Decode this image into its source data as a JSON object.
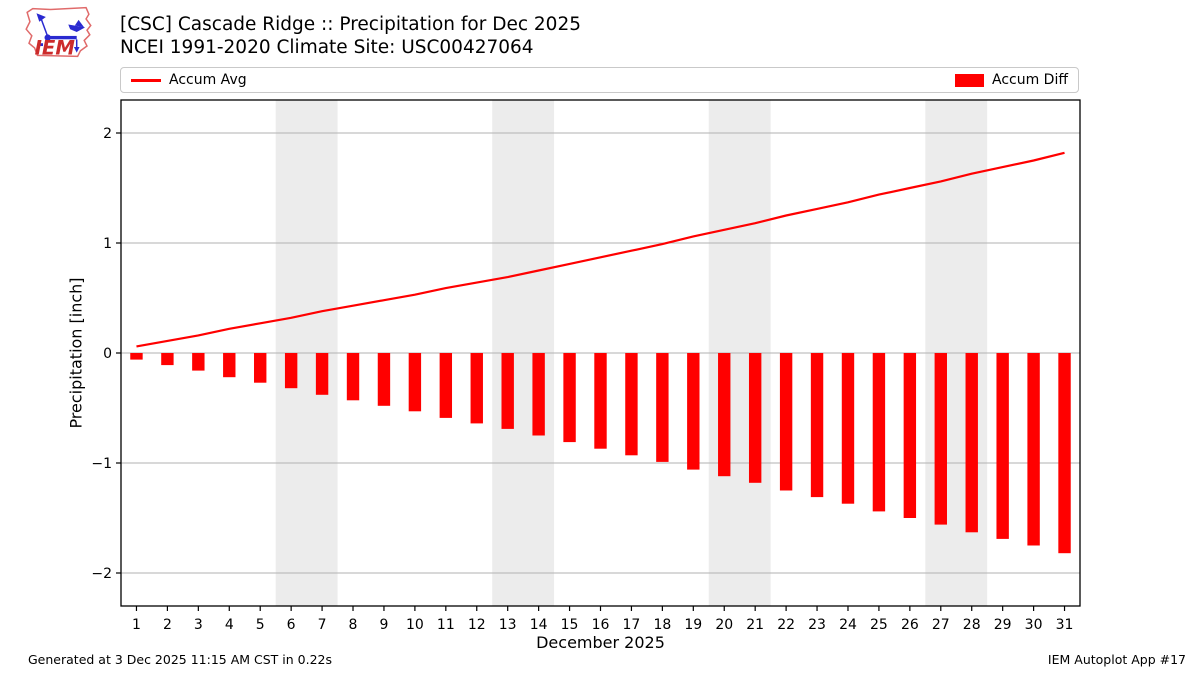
{
  "header": {
    "title_line1": "[CSC] Cascade Ridge :: Precipitation for Dec 2025",
    "title_line2": "NCEI 1991-2020 Climate Site: USC00427064",
    "logo_text": "IEM"
  },
  "footer": {
    "left": "Generated at 3 Dec 2025 11:15 AM CST in 0.22s",
    "right": "IEM Autoplot App #17"
  },
  "colors": {
    "series_red": "#ff0000",
    "grid": "#b2b2b2",
    "weekend_band": "#ececec",
    "spine": "#000000",
    "logo_outline": "#e06a6a",
    "logo_text": "#cc2b2b",
    "logo_vane": "#2a2ad0"
  },
  "chart_data": {
    "type": "bar",
    "title": "[CSC] Cascade Ridge :: Precipitation for Dec 2025",
    "subtitle": "NCEI 1991-2020 Climate Site: USC00427064",
    "xlabel": "December 2025",
    "ylabel": "Precipitation [inch]",
    "x": [
      1,
      2,
      3,
      4,
      5,
      6,
      7,
      8,
      9,
      10,
      11,
      12,
      13,
      14,
      15,
      16,
      17,
      18,
      19,
      20,
      21,
      22,
      23,
      24,
      25,
      26,
      27,
      28,
      29,
      30,
      31
    ],
    "series": [
      {
        "name": "Accum Avg",
        "kind": "line",
        "color": "#ff0000",
        "values": [
          0.06,
          0.11,
          0.16,
          0.22,
          0.27,
          0.32,
          0.38,
          0.43,
          0.48,
          0.53,
          0.59,
          0.64,
          0.69,
          0.75,
          0.81,
          0.87,
          0.93,
          0.99,
          1.06,
          1.12,
          1.18,
          1.25,
          1.31,
          1.37,
          1.44,
          1.5,
          1.56,
          1.63,
          1.69,
          1.75,
          1.82
        ]
      },
      {
        "name": "Accum Diff",
        "kind": "bar",
        "color": "#ff0000",
        "values": [
          -0.06,
          -0.11,
          -0.16,
          -0.22,
          -0.27,
          -0.32,
          -0.38,
          -0.43,
          -0.48,
          -0.53,
          -0.59,
          -0.64,
          -0.69,
          -0.75,
          -0.81,
          -0.87,
          -0.93,
          -0.99,
          -1.06,
          -1.12,
          -1.18,
          -1.25,
          -1.31,
          -1.37,
          -1.44,
          -1.5,
          -1.56,
          -1.63,
          -1.69,
          -1.75,
          -1.82
        ]
      }
    ],
    "xlim": [
      0.5,
      31.5
    ],
    "ylim": [
      -2.3,
      2.3
    ],
    "yticks": [
      -2,
      -1,
      0,
      1,
      2
    ],
    "weekend_bands": [
      [
        5.5,
        7.5
      ],
      [
        12.5,
        14.5
      ],
      [
        19.5,
        21.5
      ],
      [
        26.5,
        28.5
      ]
    ],
    "grid": true,
    "legend_position": "top"
  }
}
